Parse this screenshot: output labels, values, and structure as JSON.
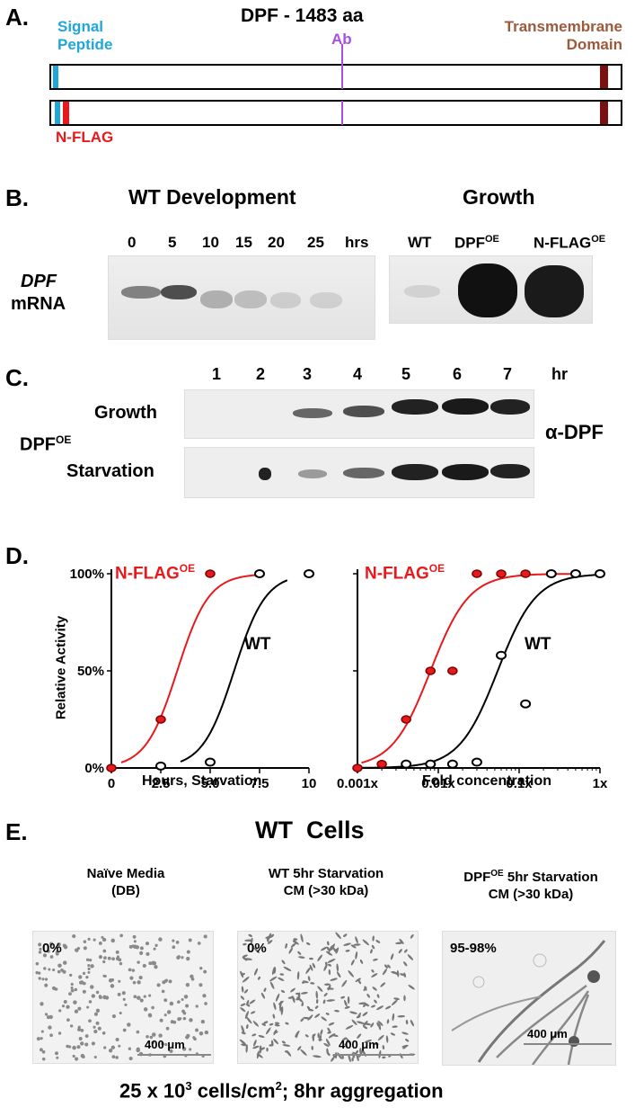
{
  "panelA": {
    "label": "A.",
    "title": "DPF - 1483 aa",
    "signal_peptide": "Signal\nPeptide",
    "ab": "Ab",
    "tm_domain": "Transmembrane\nDomain",
    "nflag": "N-FLAG",
    "colors": {
      "signal": "#1ea7d8",
      "flag": "#e8191c",
      "ab": "#a64fe0",
      "tm": "#7a1010",
      "tm_text": "#9c5a3c"
    }
  },
  "panelB": {
    "label": "B.",
    "dev_title": "WT Development",
    "growth_title": "Growth",
    "times": [
      "0",
      "5",
      "10",
      "15",
      "20",
      "25"
    ],
    "time_unit": "hrs",
    "row_label_gene": "DPF",
    "row_label_mrna": "mRNA",
    "growth_lanes": [
      {
        "name": "WT",
        "sup": ""
      },
      {
        "name": "DPF",
        "sup": "OE"
      },
      {
        "name": "N-FLAG",
        "sup": "OE"
      }
    ]
  },
  "panelC": {
    "label": "C.",
    "lanes": [
      "1",
      "2",
      "3",
      "4",
      "5",
      "6",
      "7"
    ],
    "unit": "hr",
    "strain": "DPF",
    "strain_sup": "OE",
    "row_growth": "Growth",
    "row_starvation": "Starvation",
    "antibody": "α-DPF"
  },
  "panelD": {
    "label": "D.",
    "chart_data": [
      {
        "type": "scatter",
        "xlabel": "Hours, Starvation",
        "ylabel": "Relative Activity",
        "x_ticks": [
          "0",
          "2.5",
          "5.0",
          "7.5",
          "10"
        ],
        "y_ticks": [
          "0%",
          "50%",
          "100%"
        ],
        "xlim": [
          0,
          10
        ],
        "ylim": [
          0,
          100
        ],
        "series": [
          {
            "name": "N-FLAG",
            "name_sup": "OE",
            "color": "#e8191c",
            "x": [
              0,
              2.5,
              5,
              7.5,
              10
            ],
            "y": [
              0,
              25,
              100,
              100,
              100
            ]
          },
          {
            "name": "WT",
            "name_sup": "",
            "color": "#000000",
            "x": [
              2.5,
              5,
              7.5,
              10
            ],
            "y": [
              1,
              3,
              100,
              100
            ]
          }
        ]
      },
      {
        "type": "scatter",
        "xlabel": "Fold concentration",
        "ylabel": "",
        "x_scale": "log",
        "x_ticks": [
          "0.001x",
          "0.01x",
          "0.1x",
          "1x"
        ],
        "xlim": [
          0.001,
          1
        ],
        "ylim": [
          0,
          100
        ],
        "series": [
          {
            "name": "N-FLAG",
            "name_sup": "OE",
            "color": "#e8191c",
            "x": [
              0.001,
              0.002,
              0.004,
              0.008,
              0.015,
              0.03,
              0.06,
              0.12,
              0.25,
              0.5,
              1
            ],
            "y": [
              0,
              2,
              25,
              50,
              50,
              100,
              100,
              100,
              100,
              100,
              100
            ]
          },
          {
            "name": "WT",
            "name_sup": "",
            "color": "#000000",
            "x": [
              0.004,
              0.008,
              0.015,
              0.03,
              0.06,
              0.12,
              0.25,
              0.5,
              1
            ],
            "y": [
              2,
              2,
              2,
              3,
              58,
              33,
              100,
              100,
              100
            ]
          }
        ]
      }
    ]
  },
  "panelE": {
    "label": "E.",
    "title": "WT  Cells",
    "images": [
      {
        "caption1": "Naïve Media",
        "caption2": "(DB)",
        "pct": "0%",
        "scale": "400 μm"
      },
      {
        "caption1": "WT 5hr Starvation",
        "caption2": "CM (>30 kDa)",
        "pct": "0%",
        "scale": "400 μm"
      },
      {
        "caption1": "DPF",
        "caption1_sup": "OE",
        "caption1_rest": " 5hr Starvation",
        "caption2": "CM (>30 kDa)",
        "pct": "95-98%",
        "scale": "400 μm"
      }
    ],
    "footer_pre": "25 x 10",
    "footer_sup": "3",
    "footer_mid": " cells/cm",
    "footer_sup2": "2",
    "footer_post": "; 8hr aggregation"
  }
}
